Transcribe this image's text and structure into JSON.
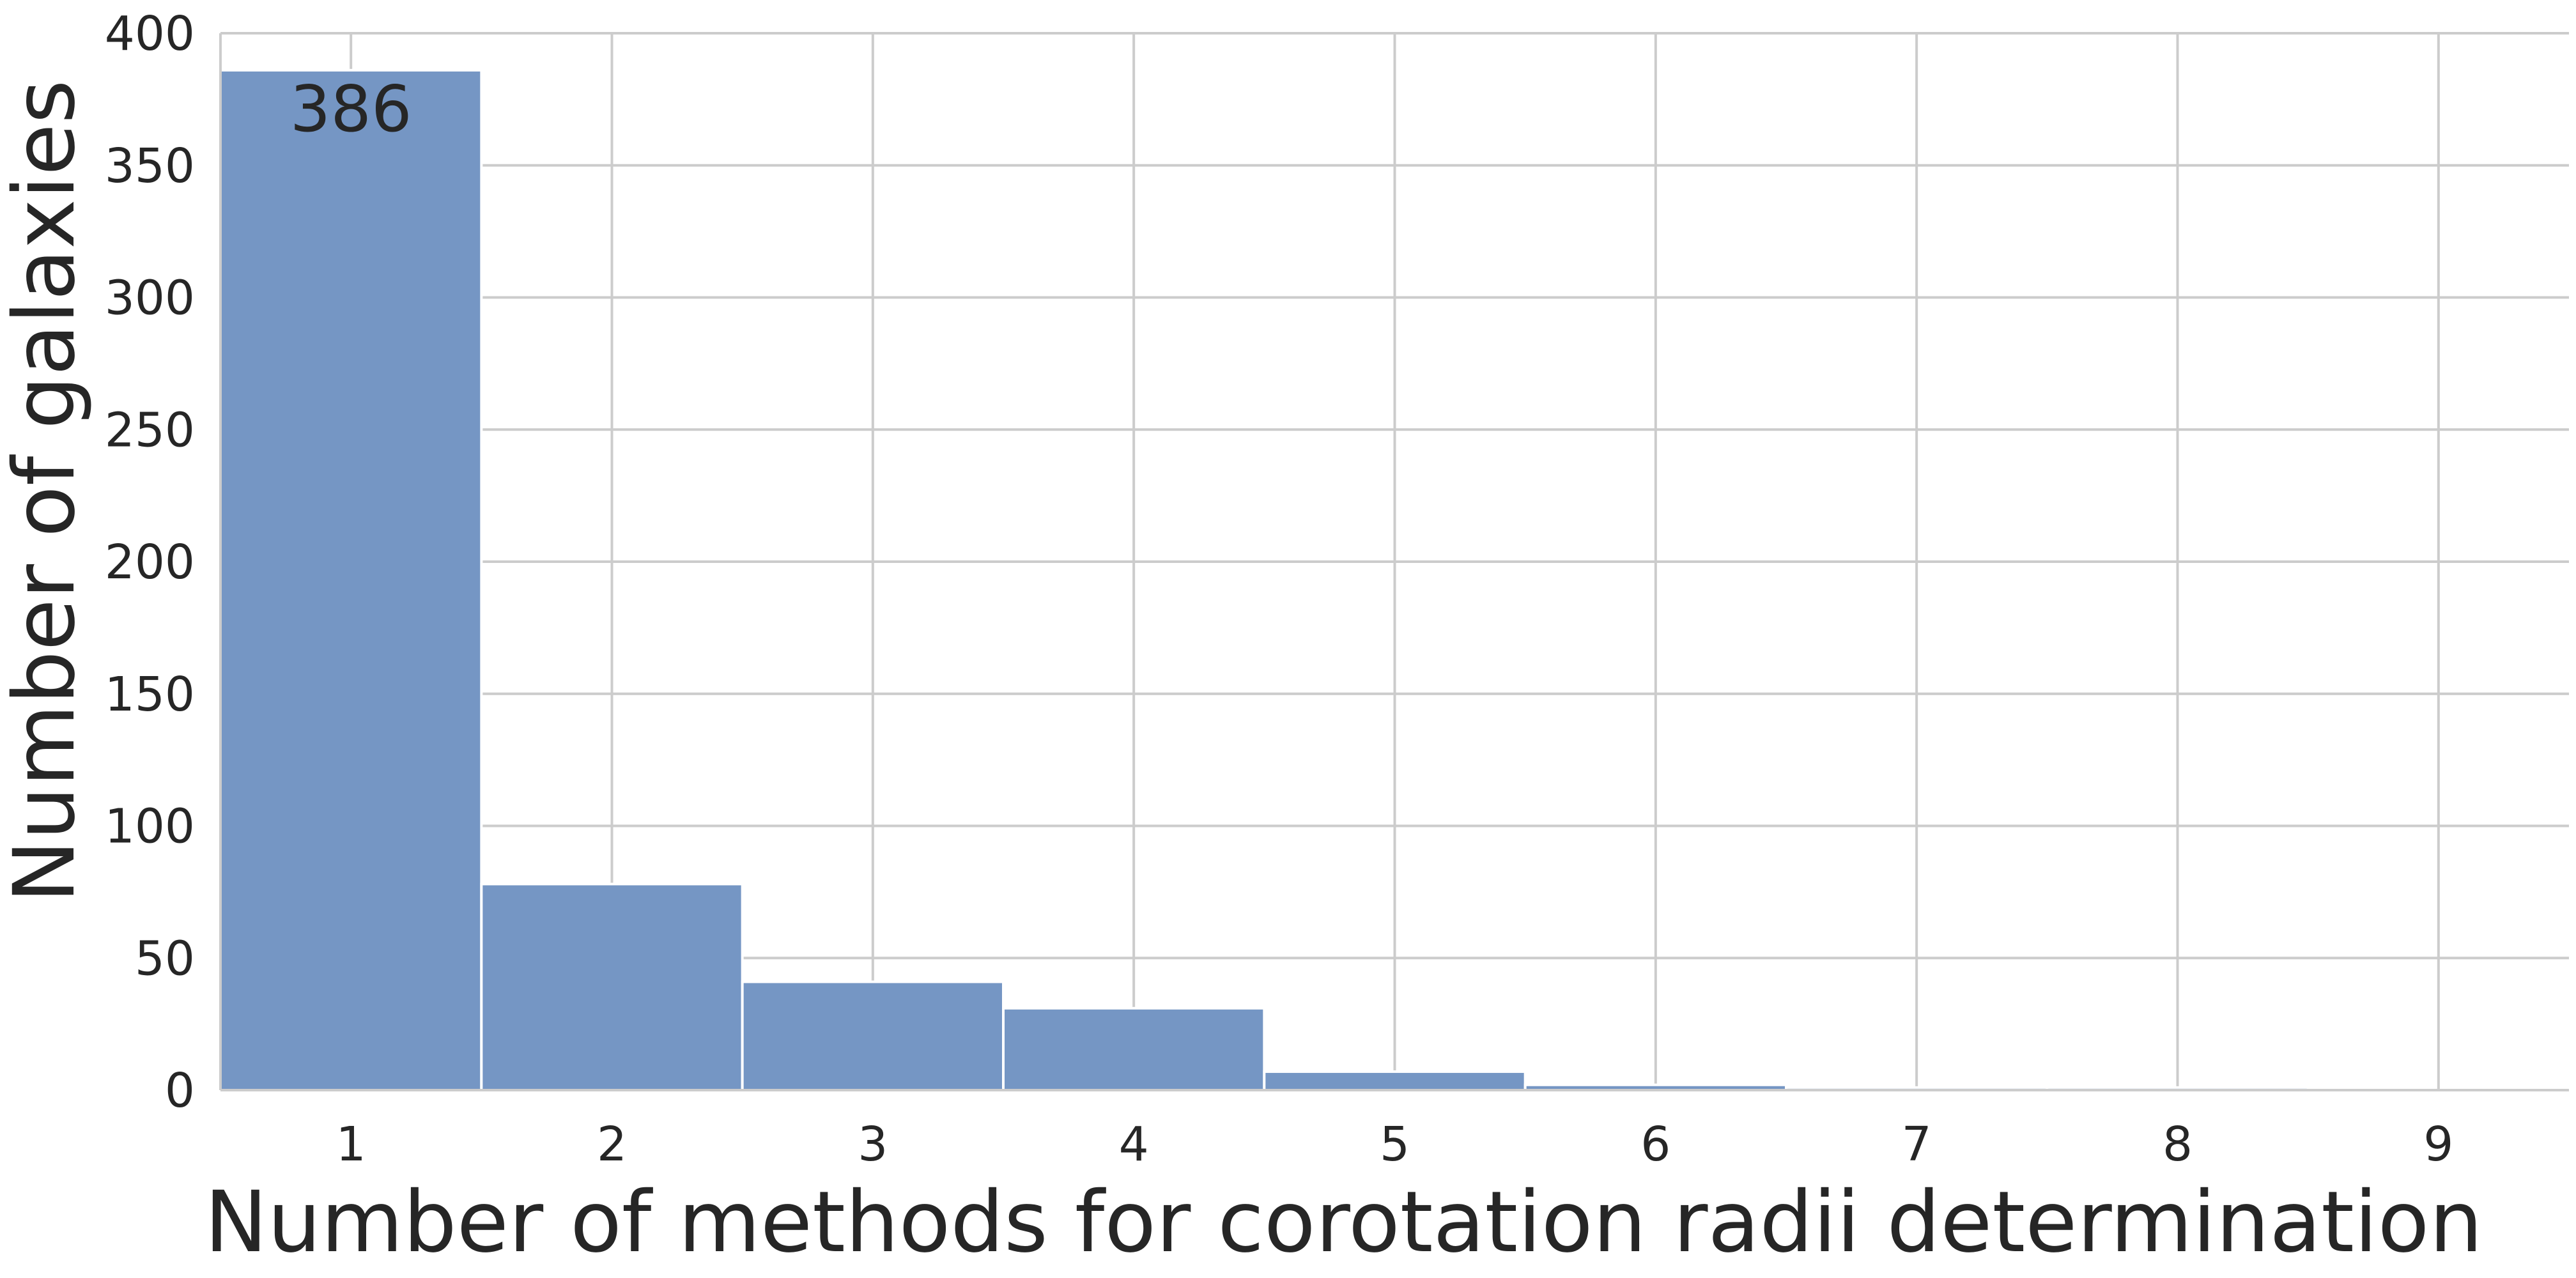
{
  "chart_data": {
    "type": "bar",
    "title": "",
    "xlabel": "Number of methods for corotation radii determination",
    "ylabel": "Number of galaxies",
    "categories": [
      "1",
      "2",
      "3",
      "4",
      "5",
      "6",
      "7",
      "8",
      "9"
    ],
    "values": [
      386,
      78,
      41,
      31,
      7,
      2,
      1,
      1,
      0
    ],
    "ylim": [
      0,
      400
    ],
    "yticks": [
      "0",
      "50",
      "100",
      "150",
      "200",
      "250",
      "300",
      "350",
      "400"
    ],
    "grid": true,
    "bar_color": "#7596c4",
    "data_labels": [
      {
        "category": "1",
        "text": "386"
      }
    ]
  }
}
